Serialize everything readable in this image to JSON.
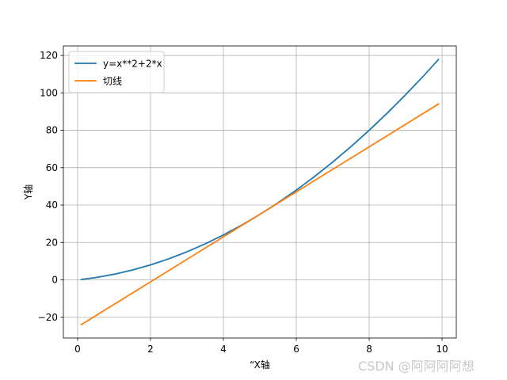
{
  "chart_data": {
    "type": "line",
    "title": "",
    "xlabel": "“X轴",
    "ylabel": "Y轴",
    "xlim": [
      -0.39,
      10.39
    ],
    "ylim": [
      -31.1,
      125.1
    ],
    "xticks": [
      0,
      2,
      4,
      6,
      8,
      10
    ],
    "yticks": [
      -20,
      0,
      20,
      40,
      60,
      80,
      100,
      120
    ],
    "grid": true,
    "legend_position": "upper-left",
    "series": [
      {
        "name": "y=x**2+2*x",
        "color": "#1f77b4",
        "x": [
          0.1,
          0.5,
          1,
          1.5,
          2,
          2.5,
          3,
          3.5,
          4,
          4.5,
          5,
          5.5,
          6,
          6.5,
          7,
          7.5,
          8,
          8.5,
          9,
          9.5,
          9.9
        ],
        "y": [
          0.21,
          1.25,
          3,
          5.25,
          8,
          11.25,
          15,
          19.25,
          24,
          29.25,
          35,
          41.25,
          48,
          55.25,
          63,
          71.25,
          80,
          89.25,
          99,
          109.25,
          117.81
        ]
      },
      {
        "name": "切线",
        "color": "#ff7f0e",
        "x": [
          0.1,
          9.9
        ],
        "y": [
          -23.94,
          94.02
        ]
      }
    ]
  },
  "watermark": "CSDN @阿阿阿阿想"
}
